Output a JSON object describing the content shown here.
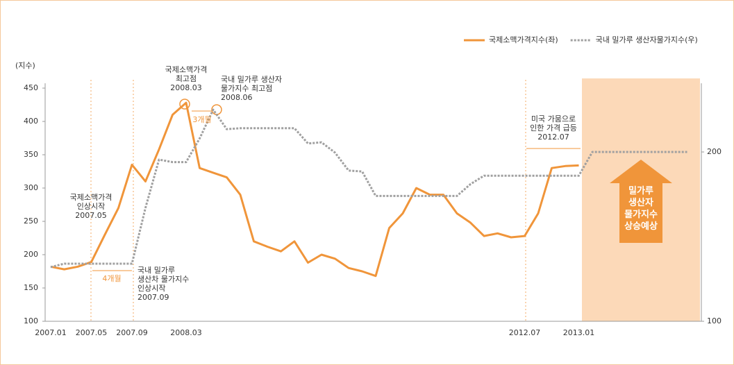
{
  "chart_data": {
    "type": "line",
    "y_label": "(지수)",
    "categories": [
      "2007.01",
      null,
      null,
      "2007.05",
      null,
      null,
      "2007.09",
      null,
      null,
      null,
      "2008.03",
      null,
      null,
      null,
      null,
      null,
      null,
      null,
      null,
      null,
      null,
      null,
      null,
      null,
      null,
      null,
      null,
      null,
      null,
      null,
      null,
      null,
      null,
      null,
      null,
      "2012.07",
      null,
      null,
      null,
      "2013.01",
      null,
      null,
      null,
      null,
      null,
      null,
      null,
      null
    ],
    "series": [
      {
        "name": "국제소맥가격지수(좌)",
        "color": "#f0953a",
        "dash": false,
        "values": [
          182,
          178,
          182,
          189,
          230,
          270,
          335,
          310,
          358,
          410,
          428,
          330,
          323,
          316,
          290,
          220,
          212,
          205,
          220,
          188,
          200,
          194,
          180,
          175,
          168,
          240,
          262,
          300,
          290,
          290,
          262,
          248,
          228,
          232,
          226,
          228,
          262,
          330,
          333,
          334,
          null,
          null,
          null,
          null,
          null,
          null,
          null,
          null
        ]
      },
      {
        "name": "국내 밀가루 생산자물가지수(우)",
        "color": "#a0a0a0",
        "dash": true,
        "axis": "y2",
        "values": [
          132,
          134,
          134,
          134,
          134,
          134,
          134,
          167,
          195.5,
          194,
          194,
          208,
          225,
          213.5,
          214,
          214,
          214,
          214,
          214,
          205,
          205.7,
          199.6,
          189,
          188.5,
          174,
          174,
          174,
          174,
          174,
          174,
          174,
          181,
          186,
          186,
          186,
          186,
          186,
          186,
          186,
          186,
          200,
          200,
          200,
          200,
          200,
          200,
          200,
          200
        ]
      }
    ],
    "ylim": [
      100,
      450
    ],
    "yticks": [
      100,
      150,
      200,
      250,
      300,
      350,
      400,
      450
    ],
    "y2lim": [
      100,
      237.7
    ],
    "y2ticks": [
      100,
      200
    ],
    "grid": false,
    "legend": "top-right",
    "annotations": [
      {
        "lines": [
          "국제소맥가격",
          "인상시작",
          "2007.05"
        ]
      },
      {
        "lines": [
          "국내 밀가루",
          "생산차 물가지수",
          "인상시작",
          "2007.09"
        ]
      },
      {
        "lines": [
          "국제소맥가격",
          "최고점",
          "2008.03"
        ]
      },
      {
        "lines": [
          "국내 밀가루 생산자",
          "물가지수 최고점",
          "2008.06"
        ]
      },
      {
        "lines": [
          "미국 가뭄으로",
          "인한 가격 급등",
          "2012.07"
        ]
      },
      {
        "lines": [
          "3개월"
        ]
      },
      {
        "lines": [
          "4개월"
        ]
      }
    ],
    "forecast": {
      "lines": [
        "밀가루",
        "생산자",
        "물가지수",
        "상승예상"
      ]
    }
  }
}
